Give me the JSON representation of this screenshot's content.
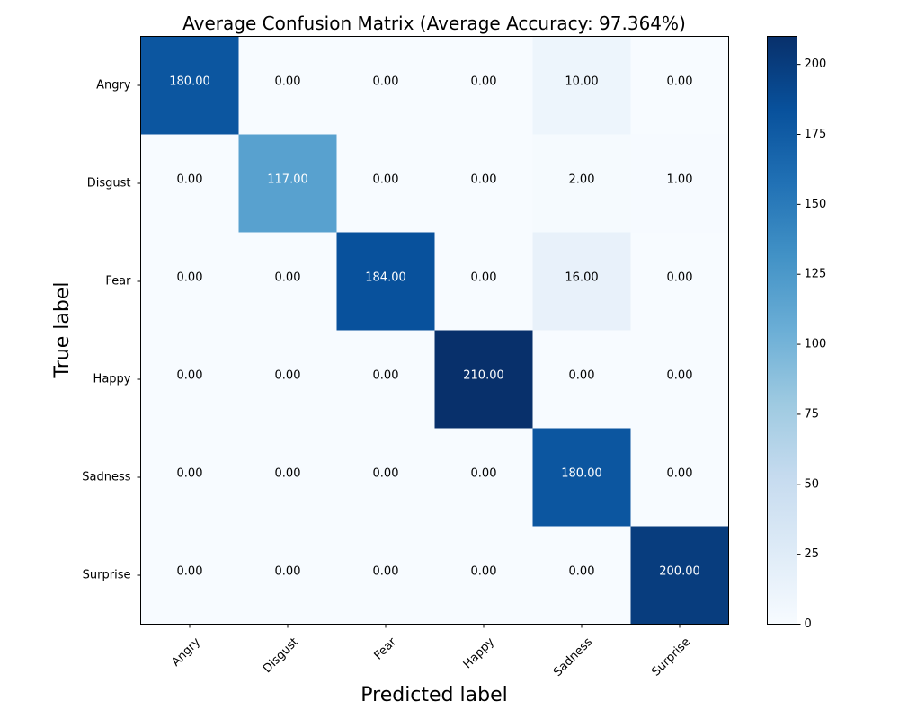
{
  "chart_data": {
    "type": "heatmap",
    "title": "Average Confusion Matrix (Average Accuracy: 97.364%)",
    "xlabel": "Predicted label",
    "ylabel": "True label",
    "x_categories": [
      "Angry",
      "Disgust",
      "Fear",
      "Happy",
      "Sadness",
      "Surprise"
    ],
    "y_categories": [
      "Angry",
      "Disgust",
      "Fear",
      "Happy",
      "Sadness",
      "Surprise"
    ],
    "values": [
      [
        180,
        0,
        0,
        0,
        10,
        0
      ],
      [
        0,
        117,
        0,
        0,
        2,
        1
      ],
      [
        0,
        0,
        184,
        0,
        16,
        0
      ],
      [
        0,
        0,
        0,
        210,
        0,
        0
      ],
      [
        0,
        0,
        0,
        0,
        180,
        0
      ],
      [
        0,
        0,
        0,
        0,
        0,
        200
      ]
    ],
    "value_labels": [
      [
        "180.00",
        "0.00",
        "0.00",
        "0.00",
        "10.00",
        "0.00"
      ],
      [
        "0.00",
        "117.00",
        "0.00",
        "0.00",
        "2.00",
        "1.00"
      ],
      [
        "0.00",
        "0.00",
        "184.00",
        "0.00",
        "16.00",
        "0.00"
      ],
      [
        "0.00",
        "0.00",
        "0.00",
        "210.00",
        "0.00",
        "0.00"
      ],
      [
        "0.00",
        "0.00",
        "0.00",
        "0.00",
        "180.00",
        "0.00"
      ],
      [
        "0.00",
        "0.00",
        "0.00",
        "0.00",
        "0.00",
        "200.00"
      ]
    ],
    "colormap": "Blues",
    "colorbar": {
      "range": [
        0,
        210
      ],
      "ticks": [
        0,
        25,
        50,
        75,
        100,
        125,
        150,
        175,
        200
      ],
      "tick_labels": [
        "0",
        "25",
        "50",
        "75",
        "100",
        "125",
        "150",
        "175",
        "200"
      ]
    },
    "grid": false
  }
}
